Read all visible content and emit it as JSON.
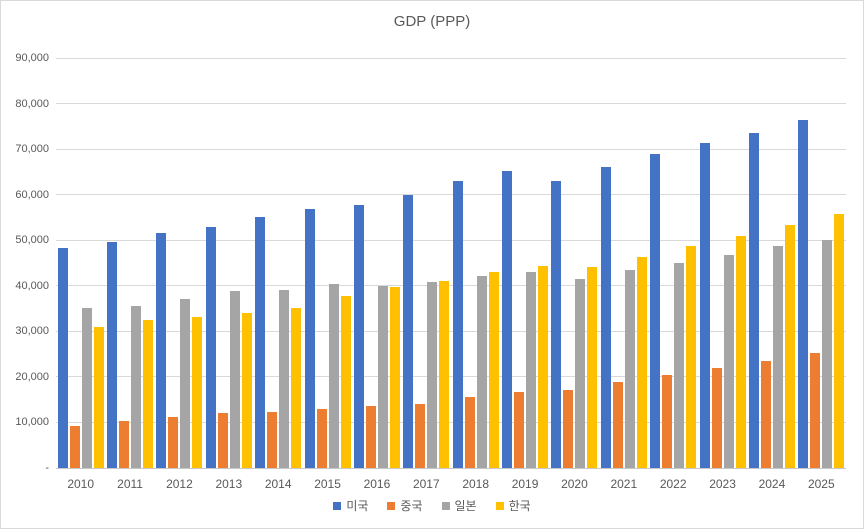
{
  "title": "GDP (PPP)",
  "colors": {
    "usa_blue": "#4472C4",
    "china_orange": "#ED7D31",
    "japan_gray": "#A5A5A5",
    "korea_yellow": "#FFC000",
    "text_gray": "#595959",
    "gridline_gray": "#D9D9D9"
  },
  "chart_data": {
    "type": "bar",
    "title": "GDP (PPP)",
    "categories": [
      "2010",
      "2011",
      "2012",
      "2013",
      "2014",
      "2015",
      "2016",
      "2017",
      "2018",
      "2019",
      "2020",
      "2021",
      "2022",
      "2023",
      "2024",
      "2025"
    ],
    "series": [
      {
        "name": "미국",
        "color": "#4472C4",
        "values": [
          48200,
          49600,
          51500,
          53000,
          55000,
          56800,
          57800,
          60000,
          62900,
          65200,
          63000,
          66000,
          69000,
          71300,
          73600,
          76300
        ]
      },
      {
        "name": "중국",
        "color": "#ED7D31",
        "values": [
          9200,
          10300,
          11200,
          12000,
          12400,
          12900,
          13700,
          14100,
          15600,
          16700,
          17200,
          18900,
          20400,
          22000,
          23500,
          25200
        ]
      },
      {
        "name": "일본",
        "color": "#A5A5A5",
        "values": [
          35100,
          35500,
          37100,
          38900,
          39100,
          40500,
          40000,
          40800,
          42200,
          43100,
          41500,
          43500,
          45100,
          46700,
          48700,
          50000
        ]
      },
      {
        "name": "한국",
        "color": "#FFC000",
        "values": [
          31000,
          32500,
          33200,
          34100,
          35200,
          37800,
          39700,
          41000,
          43000,
          44400,
          44200,
          46400,
          48800,
          51000,
          53300,
          55700
        ]
      }
    ],
    "xlabel": "",
    "ylabel": "",
    "ylim": [
      0,
      90000
    ],
    "ytick_interval": 10000,
    "ytick_labels": [
      "-",
      "10,000",
      "20,000",
      "30,000",
      "40,000",
      "50,000",
      "60,000",
      "70,000",
      "80,000",
      "90,000"
    ],
    "grid": true,
    "legend_position": "bottom"
  }
}
